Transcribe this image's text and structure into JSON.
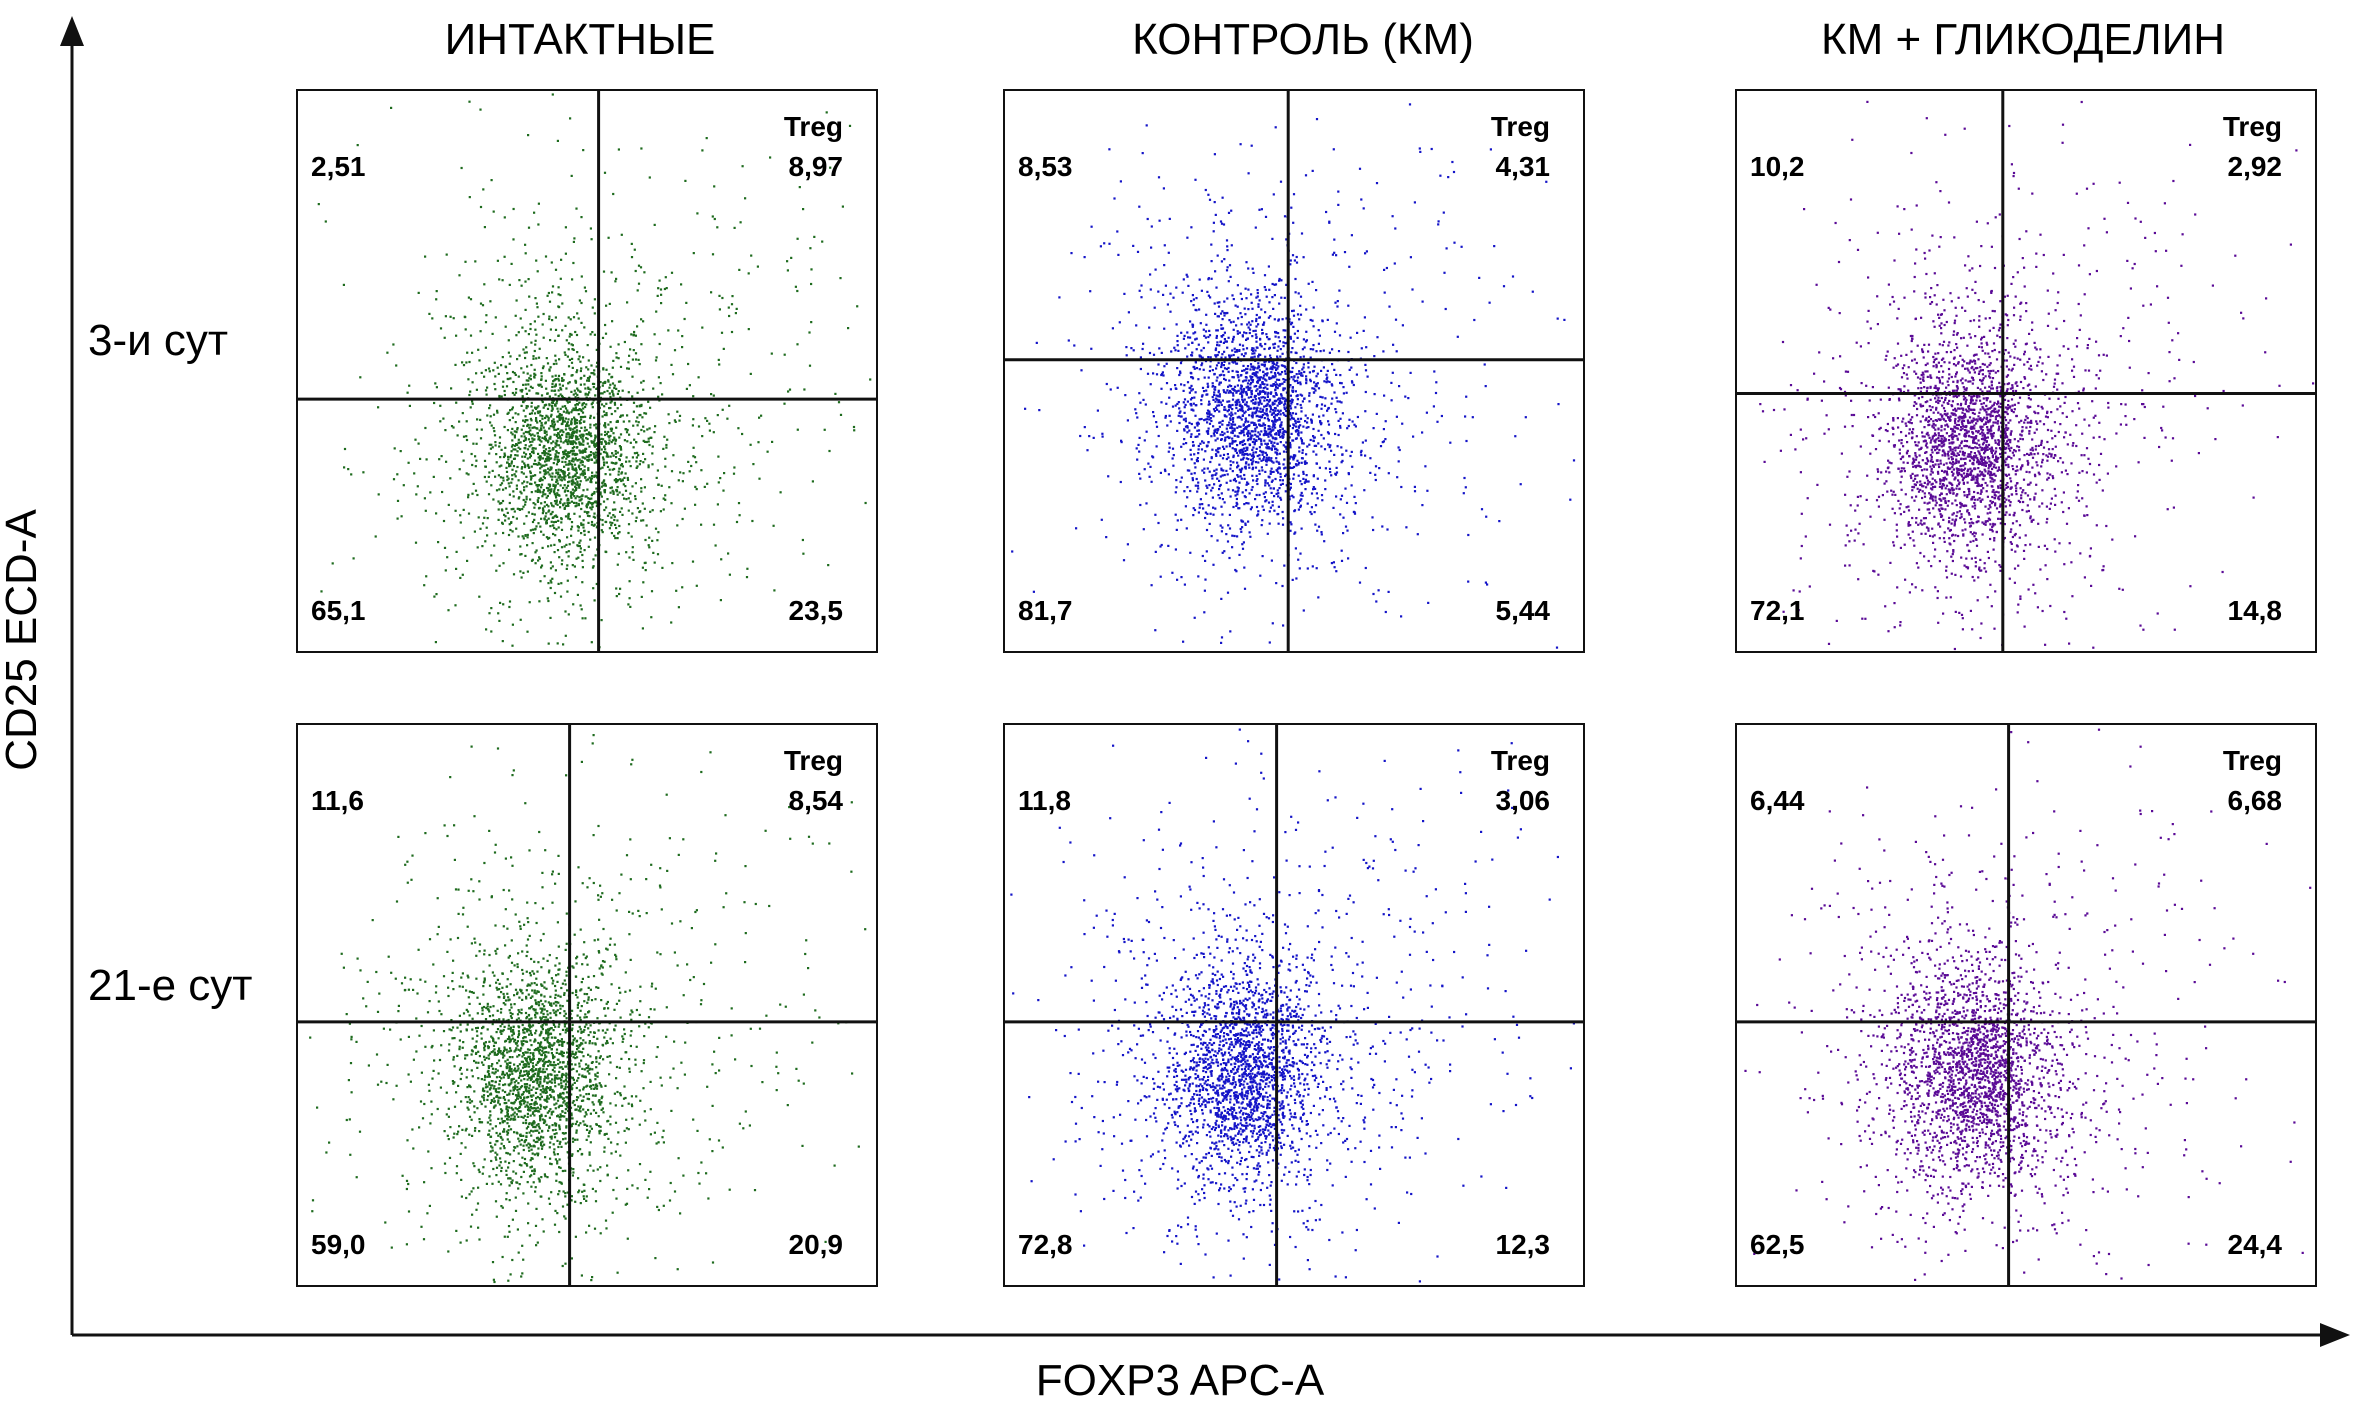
{
  "chart_data": {
    "type": "scatter",
    "description_kind": "flow cytometry quadrant dot plots",
    "xlabel": "FOXP3 APC-A",
    "ylabel": "CD25 ECD-A",
    "columns": [
      "ИНТАКТНЫЕ",
      "КОНТРОЛЬ (КМ)",
      "КМ + ГЛИКОДЕЛИН"
    ],
    "rows": [
      "3-и сут",
      "21-е сут"
    ],
    "quadrant_tag": "Treg",
    "column_colors": [
      "#1e6b1e",
      "#1414c8",
      "#5a0a96"
    ],
    "panels": [
      {
        "row": 0,
        "col": 0,
        "cx": 0.52,
        "cy": 0.55,
        "ul": "2,51",
        "ur": "8,97",
        "ll": "65,1",
        "lr": "23,5"
      },
      {
        "row": 0,
        "col": 1,
        "cx": 0.49,
        "cy": 0.48,
        "ul": "8,53",
        "ur": "4,31",
        "ll": "81,7",
        "lr": "5,44"
      },
      {
        "row": 0,
        "col": 2,
        "cx": 0.46,
        "cy": 0.54,
        "ul": "10,2",
        "ur": "2,92",
        "ll": "72,1",
        "lr": "14,8"
      },
      {
        "row": 1,
        "col": 0,
        "cx": 0.47,
        "cy": 0.53,
        "ul": "11,6",
        "ur": "8,54",
        "ll": "59,0",
        "lr": "20,9"
      },
      {
        "row": 1,
        "col": 1,
        "cx": 0.47,
        "cy": 0.53,
        "ul": "11,8",
        "ur": "3,06",
        "ll": "72,8",
        "lr": "12,3"
      },
      {
        "row": 1,
        "col": 2,
        "cx": 0.47,
        "cy": 0.53,
        "ul": "6,44",
        "ur": "6,68",
        "ll": "62,5",
        "lr": "24,4"
      }
    ]
  }
}
